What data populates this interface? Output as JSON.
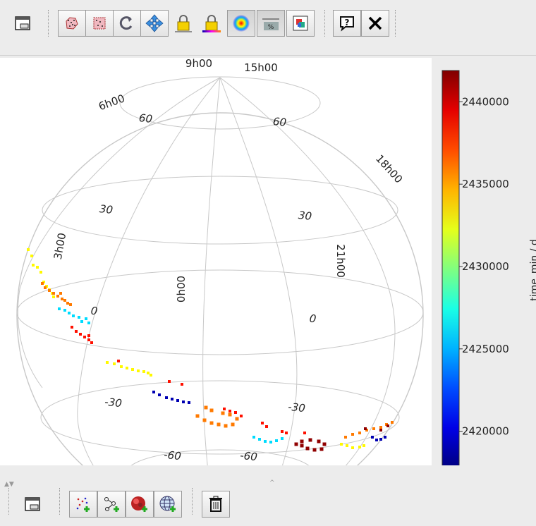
{
  "toolbar": {
    "buttons": [
      {
        "name": "window-icon",
        "label": ""
      },
      {
        "name": "scatter-region-icon",
        "label": ""
      },
      {
        "name": "scatter-box-icon",
        "label": ""
      },
      {
        "name": "refresh-icon",
        "label": ""
      },
      {
        "name": "move-arrows-icon",
        "label": ""
      },
      {
        "name": "lock-icon",
        "label": ""
      },
      {
        "name": "lock-colour-icon",
        "label": ""
      },
      {
        "name": "density-icon",
        "label": ""
      },
      {
        "name": "axis-percent-icon",
        "label": ""
      },
      {
        "name": "export-icon",
        "label": ""
      },
      {
        "name": "help-icon",
        "label": "?"
      },
      {
        "name": "close-icon",
        "label": "✕"
      }
    ]
  },
  "bottom_toolbar": {
    "buttons": [
      {
        "name": "window-icon"
      },
      {
        "name": "add-points-icon"
      },
      {
        "name": "add-pairs-icon"
      },
      {
        "name": "add-density-icon"
      },
      {
        "name": "add-grid-icon"
      },
      {
        "name": "trash-icon"
      }
    ]
  },
  "chart_data": {
    "type": "scatter",
    "projection": "sky-sphere",
    "title": "",
    "grid": true,
    "lat_labels": [
      "60",
      "60",
      "30",
      "30",
      "0",
      "0",
      "-30",
      "-30",
      "-60",
      "-60"
    ],
    "lon_labels": [
      "9h00",
      "15h00",
      "6h00",
      "18h00",
      "3h00",
      "21h00",
      "0h00"
    ],
    "colorbar": {
      "label": "time_min / d",
      "range": [
        2417800,
        2441900
      ],
      "ticks": [
        2420000,
        2425000,
        2430000,
        2435000,
        2440000
      ],
      "tick_labels": [
        "2420000",
        "2425000",
        "2430000",
        "2435000",
        "2440000"
      ],
      "colormap": "jet"
    },
    "points_note": "points are colored by time_min",
    "series": [
      {
        "color_value": 2441500,
        "count": 40
      },
      {
        "color_value": 2438500,
        "count": 35
      },
      {
        "color_value": 2436000,
        "count": 30
      },
      {
        "color_value": 2433000,
        "count": 35
      },
      {
        "color_value": 2426000,
        "count": 25
      },
      {
        "color_value": 2419000,
        "count": 25
      }
    ]
  }
}
